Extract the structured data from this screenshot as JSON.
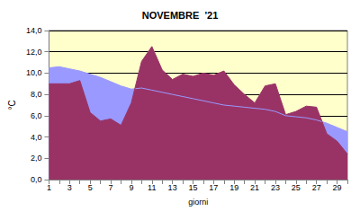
{
  "chart_data": {
    "type": "area",
    "title": "NOVEMBRE  '21",
    "x_label": "giorni",
    "y_label": "°C",
    "categories": [
      "1",
      null,
      "3",
      null,
      "5",
      null,
      "7",
      null,
      "9",
      null,
      "11",
      null,
      "13",
      null,
      "15",
      null,
      "17",
      null,
      "19",
      null,
      "21",
      null,
      "23",
      null,
      "25",
      null,
      "27",
      null,
      "29",
      null
    ],
    "series": [
      {
        "color": "#9999ff",
        "values": [
          10.5,
          10.6,
          10.4,
          10.2,
          9.9,
          9.6,
          9.2,
          8.8,
          8.5,
          8.6,
          8.4,
          8.2,
          8.0,
          7.8,
          7.6,
          7.4,
          7.2,
          7.0,
          6.9,
          6.8,
          6.7,
          6.6,
          6.4,
          6.0,
          5.9,
          5.8,
          5.6,
          5.3,
          4.9,
          4.5
        ]
      },
      {
        "color": "#993366",
        "values": [
          9.0,
          9.0,
          9.0,
          9.3,
          6.3,
          5.5,
          5.7,
          5.1,
          7.2,
          11.1,
          12.5,
          10.3,
          9.4,
          9.9,
          9.7,
          10.0,
          9.8,
          10.2,
          8.9,
          8.0,
          7.2,
          8.8,
          9.0,
          6.1,
          6.4,
          6.9,
          6.8,
          4.3,
          3.6,
          2.4
        ]
      }
    ],
    "ylim": [
      0,
      14
    ],
    "yticks": [
      {
        "value": 0,
        "label": "0,0"
      },
      {
        "value": 2,
        "label": "2,0"
      },
      {
        "value": 4,
        "label": "4,0"
      },
      {
        "value": 6,
        "label": "6,0"
      },
      {
        "value": 8,
        "label": "8,0"
      },
      {
        "value": 10,
        "label": "10,0"
      },
      {
        "value": 12,
        "label": "12,0"
      },
      {
        "value": 14,
        "label": "14,0"
      }
    ],
    "grid": true
  }
}
